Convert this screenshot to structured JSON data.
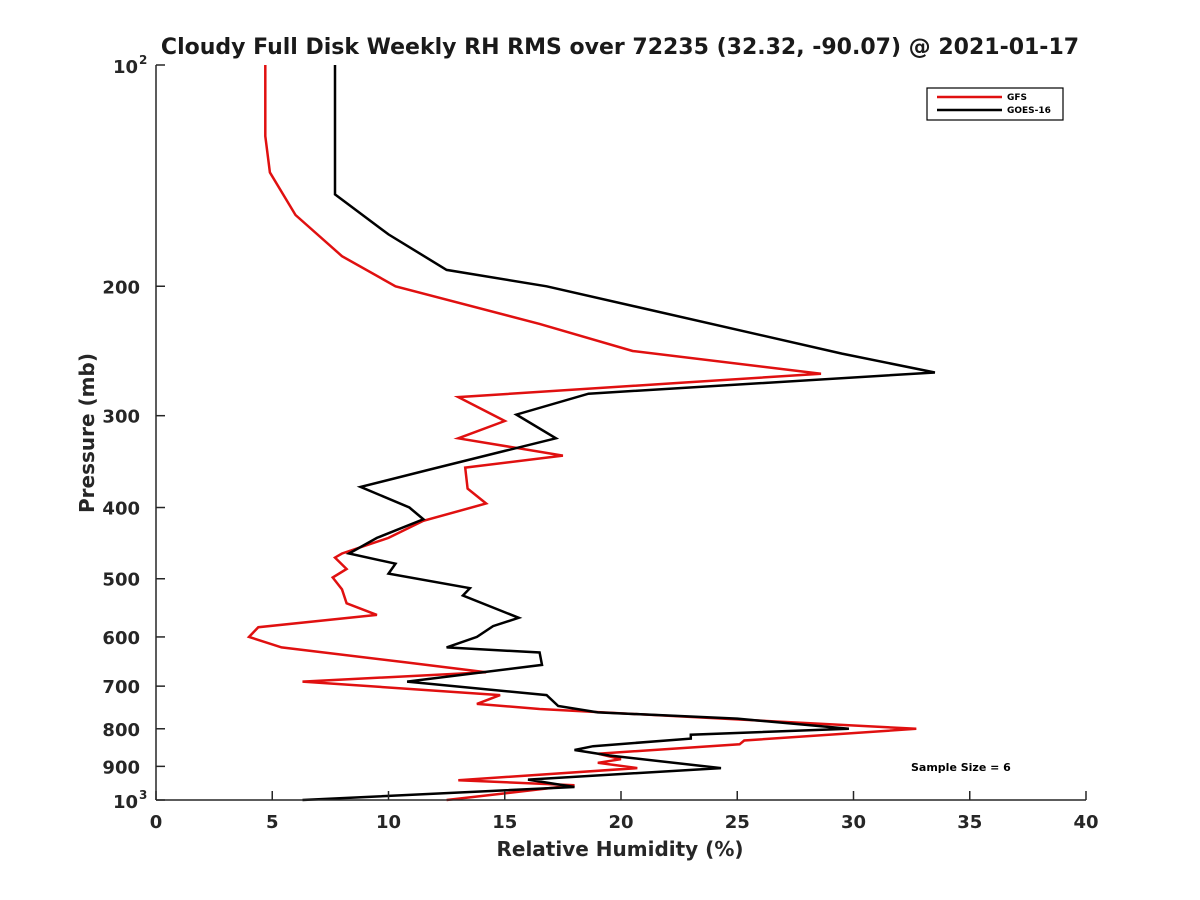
{
  "chart_data": {
    "type": "line",
    "title": "Cloudy Full Disk Weekly RH RMS over 72235 (32.32, -90.07) @ 2021-01-17",
    "xlabel": "Relative Humidity (%)",
    "ylabel": "Pressure (mb)",
    "xlim": [
      0,
      40
    ],
    "ylim": [
      1000,
      100
    ],
    "yscale": "log",
    "xticks": [
      0,
      5,
      10,
      15,
      20,
      25,
      30,
      35,
      40
    ],
    "xtick_labels": [
      "0",
      "5",
      "10",
      "15",
      "20",
      "25",
      "30",
      "35",
      "40"
    ],
    "yticks": [
      {
        "value": 100,
        "base": "10",
        "exp": "2"
      },
      {
        "value": 200,
        "label": "200"
      },
      {
        "value": 300,
        "label": "300"
      },
      {
        "value": 400,
        "label": "400"
      },
      {
        "value": 500,
        "label": "500"
      },
      {
        "value": 600,
        "label": "600"
      },
      {
        "value": 700,
        "label": "700"
      },
      {
        "value": 800,
        "label": "800"
      },
      {
        "value": 900,
        "label": "900"
      },
      {
        "value": 1000,
        "base": "10",
        "exp": "3"
      }
    ],
    "legend_position": "top-right",
    "annotation": "Sample Size = 6",
    "series": [
      {
        "name": "GFS",
        "color": "#e01010",
        "points": [
          [
            4.7,
            100
          ],
          [
            4.7,
            125
          ],
          [
            4.9,
            140
          ],
          [
            6.0,
            160
          ],
          [
            8.0,
            182
          ],
          [
            10.3,
            200
          ],
          [
            16.5,
            225
          ],
          [
            20.5,
            245
          ],
          [
            28.6,
            263
          ],
          [
            13.0,
            283
          ],
          [
            15.0,
            305
          ],
          [
            13.0,
            322
          ],
          [
            17.5,
            340
          ],
          [
            13.3,
            353
          ],
          [
            13.4,
            377
          ],
          [
            14.2,
            395
          ],
          [
            11.5,
            417
          ],
          [
            10.0,
            440
          ],
          [
            8.0,
            462
          ],
          [
            7.7,
            468
          ],
          [
            8.2,
            485
          ],
          [
            7.6,
            498
          ],
          [
            8.0,
            517
          ],
          [
            8.2,
            540
          ],
          [
            9.5,
            560
          ],
          [
            4.4,
            582
          ],
          [
            4.0,
            600
          ],
          [
            5.4,
            620
          ],
          [
            10.8,
            650
          ],
          [
            14.2,
            670
          ],
          [
            6.3,
            690
          ],
          [
            14.8,
            720
          ],
          [
            13.8,
            740
          ],
          [
            16.5,
            752
          ],
          [
            32.7,
            800
          ],
          [
            25.3,
            830
          ],
          [
            25.1,
            840
          ],
          [
            19.0,
            865
          ],
          [
            20.0,
            880
          ],
          [
            19.0,
            890
          ],
          [
            20.7,
            905
          ],
          [
            13.0,
            940
          ],
          [
            18.0,
            955
          ],
          [
            12.5,
            1000
          ]
        ]
      },
      {
        "name": "GOES-16",
        "color": "#000000",
        "points": [
          [
            7.7,
            100
          ],
          [
            7.7,
            150
          ],
          [
            10.0,
            170
          ],
          [
            12.5,
            190
          ],
          [
            16.8,
            200
          ],
          [
            29.5,
            247
          ],
          [
            33.5,
            262
          ],
          [
            18.6,
            280
          ],
          [
            15.5,
            299
          ],
          [
            17.2,
            322
          ],
          [
            15.0,
            335
          ],
          [
            11.8,
            355
          ],
          [
            8.8,
            375
          ],
          [
            10.9,
            400
          ],
          [
            11.5,
            415
          ],
          [
            9.5,
            440
          ],
          [
            8.3,
            462
          ],
          [
            10.3,
            477
          ],
          [
            10.0,
            492
          ],
          [
            13.5,
            515
          ],
          [
            13.2,
            527
          ],
          [
            15.6,
            565
          ],
          [
            14.5,
            580
          ],
          [
            13.8,
            600
          ],
          [
            12.5,
            620
          ],
          [
            16.5,
            630
          ],
          [
            16.6,
            655
          ],
          [
            10.8,
            690
          ],
          [
            16.8,
            720
          ],
          [
            17.3,
            745
          ],
          [
            19.0,
            760
          ],
          [
            25.0,
            775
          ],
          [
            29.8,
            800
          ],
          [
            23.0,
            815
          ],
          [
            23.0,
            825
          ],
          [
            18.8,
            845
          ],
          [
            18.0,
            855
          ],
          [
            19.5,
            870
          ],
          [
            24.3,
            905
          ],
          [
            16.0,
            938
          ],
          [
            18.0,
            960
          ],
          [
            6.3,
            1000
          ]
        ]
      }
    ]
  }
}
